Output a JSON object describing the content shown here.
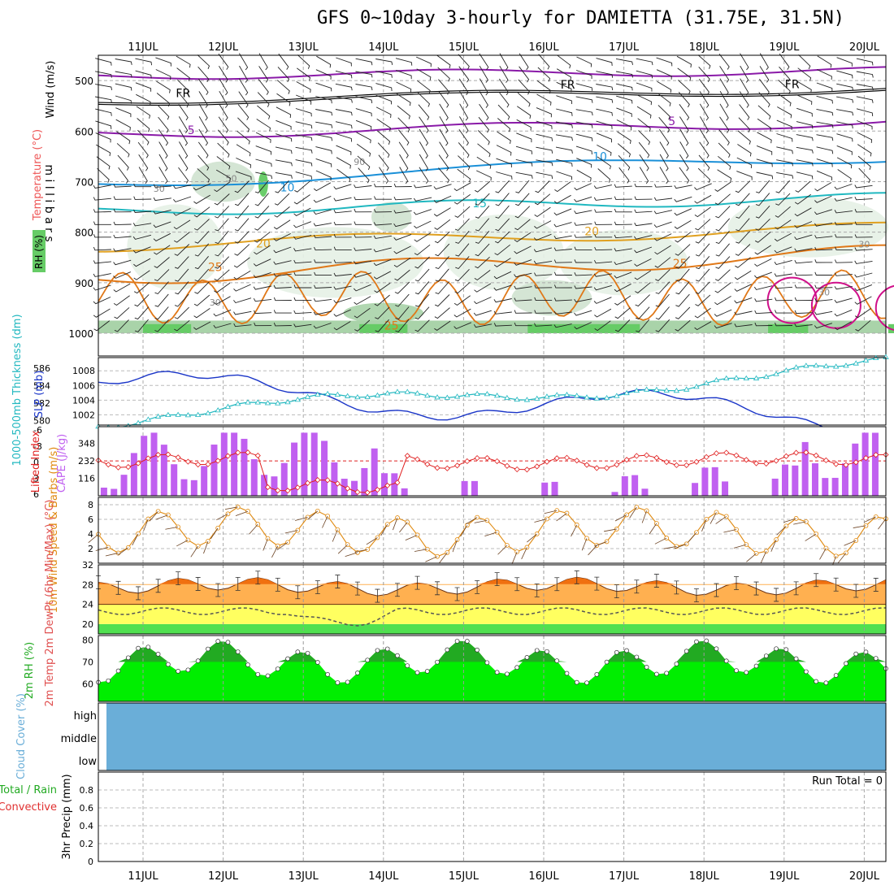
{
  "title": "GFS 0~10day 3-hourly for DAMIETTA (31.75E, 31.5N)",
  "colors": {
    "rh": "#4caf50",
    "slp": "#1a35c8",
    "thickness": "#22b8c0",
    "lifted": "#e02020",
    "cape": "#c060f0",
    "wind10": "#e08a10",
    "cloud": "#6aaed8",
    "rhfill": "#00ee00",
    "temp_hot": "#f07010",
    "temp_warm": "#ffb050",
    "temp_mild": "#ffff60",
    "temp_cool": "#50e050"
  },
  "chart_data": [
    {
      "id": "upper-air",
      "type": "contour",
      "ylabel": "m i l l i b a r s",
      "side_labels": [
        "Wind (m/s)",
        "Temperature (°C)",
        "RH (%)"
      ],
      "y_ticks": [
        500,
        600,
        700,
        800,
        900,
        1000
      ],
      "ylim": [
        450,
        1000
      ],
      "x_days": [
        "11JUL",
        "12JUL",
        "13JUL",
        "14JUL",
        "15JUL",
        "16JUL",
        "17JUL",
        "18JUL",
        "19JUL",
        "20JUL"
      ],
      "isotherm_labels": [
        {
          "text": "FR",
          "t": 0.5,
          "p": 525
        },
        {
          "text": "FR",
          "t": 5.3,
          "p": 508
        },
        {
          "text": "FR",
          "t": 8.1,
          "p": 507
        },
        {
          "text": "5",
          "t": 0.6,
          "p": 598
        },
        {
          "text": "5",
          "t": 6.6,
          "p": 580
        },
        {
          "text": "10",
          "t": 1.8,
          "p": 711
        },
        {
          "text": "10",
          "t": 5.7,
          "p": 650
        },
        {
          "text": "15",
          "t": 4.2,
          "p": 743
        },
        {
          "text": "20",
          "t": 1.5,
          "p": 822
        },
        {
          "text": "20",
          "t": 5.6,
          "p": 798
        },
        {
          "text": "25",
          "t": 0.9,
          "p": 869
        },
        {
          "text": "25",
          "t": 6.7,
          "p": 862
        },
        {
          "text": "25",
          "t": 3.1,
          "p": 985
        }
      ],
      "rh_labels": [
        "30",
        "50",
        "70",
        "90"
      ]
    },
    {
      "id": "slp-thickness",
      "type": "line",
      "ylabel_left": "1000-500mb Thickness (dm)",
      "ylabel_right": "SLP (mb)",
      "thickness_ticks": [
        580,
        582,
        584,
        586
      ],
      "slp_ticks": [
        1002,
        1004,
        1006,
        1008
      ],
      "thickness_ylim": [
        579.5,
        587.2
      ],
      "slp_ylim": [
        1000.6,
        1009.8
      ]
    },
    {
      "id": "cape-lifted",
      "type": "bar",
      "ylabel_left": "Lifted Index",
      "ylabel_right": "CAPE (J/kg)",
      "li_ticks": [
        "-6",
        "-3",
        "0",
        "3",
        "6"
      ],
      "cape_ticks": [
        116,
        232,
        348
      ],
      "cape_ylim": [
        0,
        460
      ]
    },
    {
      "id": "wind10",
      "type": "line",
      "ylabel": "10m Wind Speed & Barbs (m/s)",
      "y_ticks": [
        2,
        4,
        6,
        8
      ],
      "ylim": [
        0,
        9
      ]
    },
    {
      "id": "temp2m",
      "type": "area",
      "ylabel": "2m Temp 2m DewPt (6hr Min/Max) (°C)",
      "y_ticks": [
        20,
        24,
        28,
        32
      ],
      "ylim": [
        18,
        32
      ]
    },
    {
      "id": "rh2m",
      "type": "area",
      "ylabel": "2m RH (%)",
      "y_ticks": [
        60,
        70,
        80
      ],
      "ylim": [
        52,
        82
      ]
    },
    {
      "id": "cloud",
      "type": "area",
      "ylabel": "Cloud Cover (%)",
      "levels": [
        "high",
        "middle",
        "low"
      ],
      "coverage": "full"
    },
    {
      "id": "precip",
      "type": "bar",
      "ylabel": "3hr Precip (mm)",
      "legend": [
        "Total / Rain",
        "Convective"
      ],
      "y_ticks": [
        "0",
        "0.2",
        "0.4",
        "0.6",
        "0.8"
      ],
      "ylim": [
        0,
        1
      ],
      "run_total": "Run Total = 0",
      "values": []
    }
  ]
}
